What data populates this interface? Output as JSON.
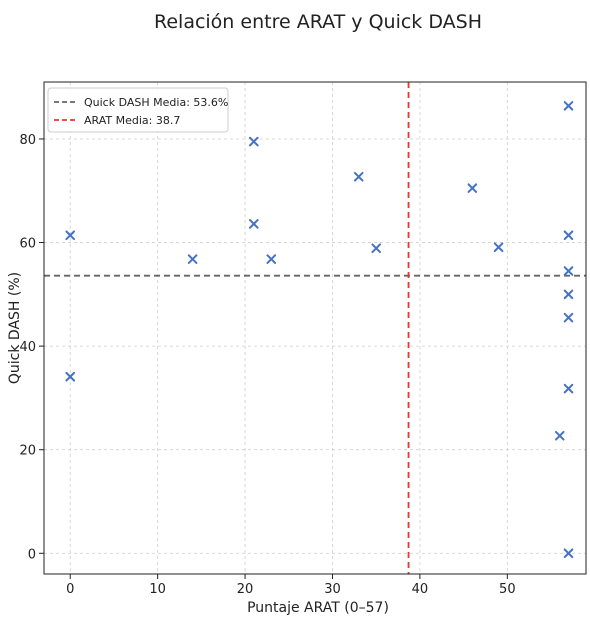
{
  "chart_data": {
    "type": "scatter",
    "title": "Relación entre ARAT y Quick DASH",
    "xlabel": "Puntaje ARAT (0–57)",
    "ylabel": "Quick DASH (%)",
    "xlim": [
      -3,
      59
    ],
    "ylim": [
      -4,
      91
    ],
    "xticks": [
      0,
      10,
      20,
      30,
      40,
      50
    ],
    "yticks": [
      0,
      20,
      40,
      60,
      80
    ],
    "grid": true,
    "legend_position": "top-left",
    "marker": "x",
    "marker_color": "#4472c4",
    "points": [
      {
        "x": 0,
        "y": 61.4
      },
      {
        "x": 0,
        "y": 34.1
      },
      {
        "x": 14,
        "y": 56.8
      },
      {
        "x": 21,
        "y": 79.5
      },
      {
        "x": 21,
        "y": 63.6
      },
      {
        "x": 23,
        "y": 56.8
      },
      {
        "x": 33,
        "y": 72.7
      },
      {
        "x": 35,
        "y": 58.9
      },
      {
        "x": 46,
        "y": 70.5
      },
      {
        "x": 49,
        "y": 59.1
      },
      {
        "x": 56,
        "y": 22.7
      },
      {
        "x": 57,
        "y": 86.4
      },
      {
        "x": 57,
        "y": 61.4
      },
      {
        "x": 57,
        "y": 54.5
      },
      {
        "x": 57,
        "y": 50.0
      },
      {
        "x": 57,
        "y": 45.5
      },
      {
        "x": 57,
        "y": 31.8
      },
      {
        "x": 57,
        "y": 0
      }
    ],
    "reference_lines": [
      {
        "orientation": "horizontal",
        "value": 53.6,
        "label": "Quick DASH Media: 53.6%",
        "color": "#666666"
      },
      {
        "orientation": "vertical",
        "value": 38.7,
        "label": "ARAT Media: 38.7",
        "color": "#e8372c"
      }
    ]
  }
}
